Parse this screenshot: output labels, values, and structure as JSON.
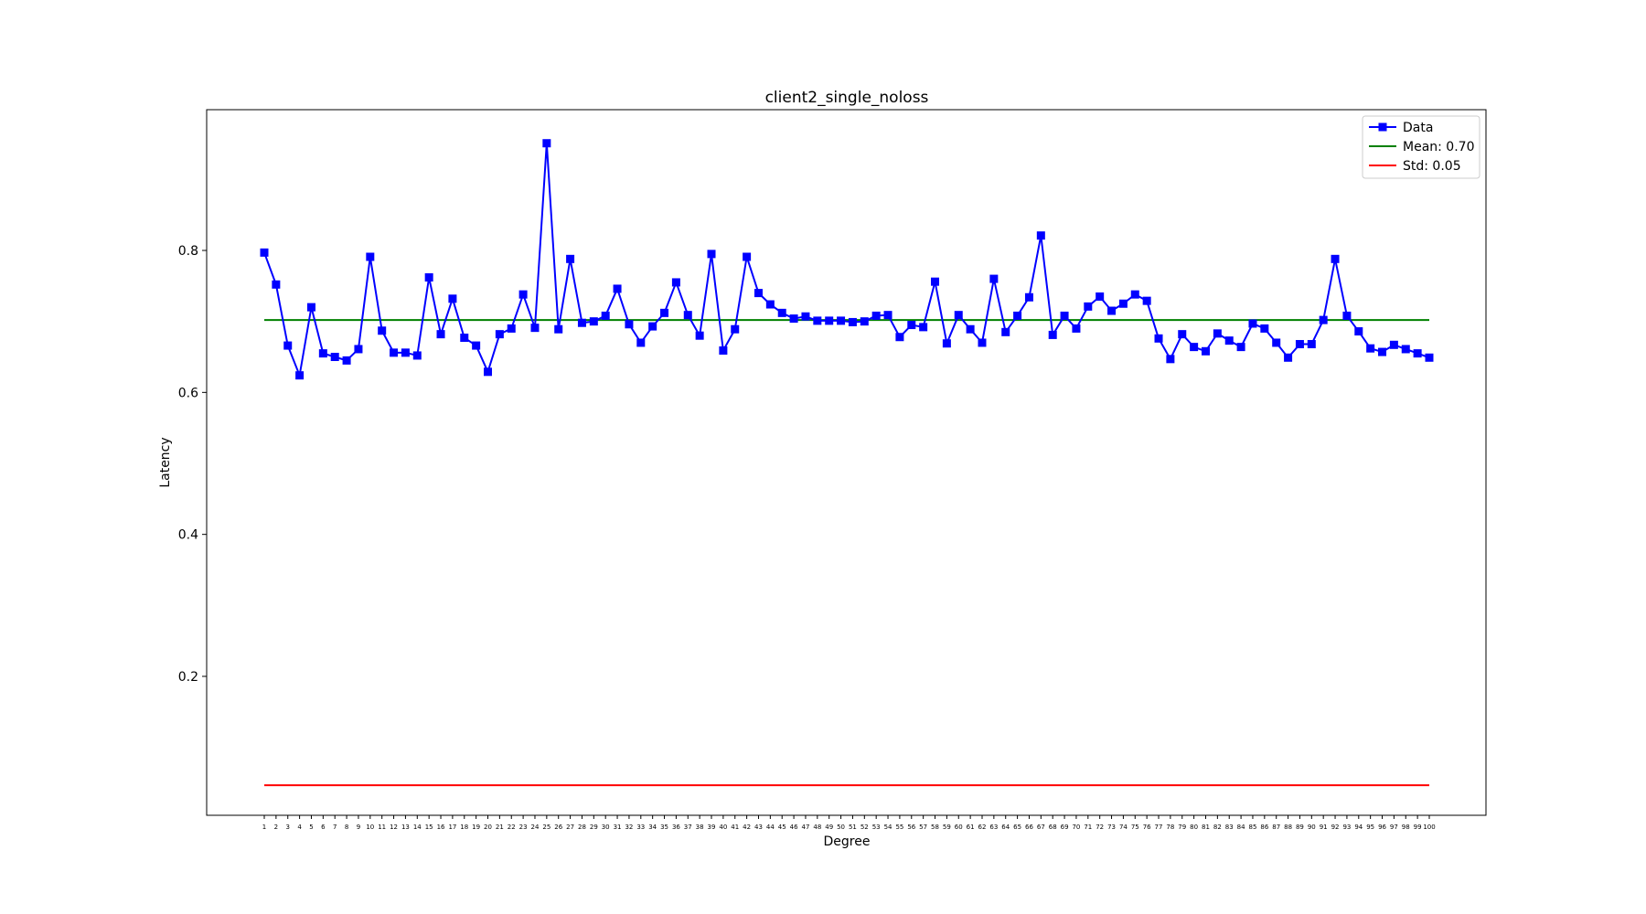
{
  "chart_data": {
    "type": "line",
    "title": "client2_single_noloss",
    "xlabel": "Degree",
    "ylabel": "Latency",
    "xlim": [
      1,
      100
    ],
    "ylim": [
      0,
      1
    ],
    "yticks": [
      0.2,
      0.4,
      0.6,
      0.8
    ],
    "ytick_labels": [
      "0.2",
      "0.4",
      "0.6",
      "0.8"
    ],
    "grid": false,
    "legend_position": "top-right",
    "x": [
      1,
      2,
      3,
      4,
      5,
      6,
      7,
      8,
      9,
      10,
      11,
      12,
      13,
      14,
      15,
      16,
      17,
      18,
      19,
      20,
      21,
      22,
      23,
      24,
      25,
      26,
      27,
      28,
      29,
      30,
      31,
      32,
      33,
      34,
      35,
      36,
      37,
      38,
      39,
      40,
      41,
      42,
      43,
      44,
      45,
      46,
      47,
      48,
      49,
      50,
      51,
      52,
      53,
      54,
      55,
      56,
      57,
      58,
      59,
      60,
      61,
      62,
      63,
      64,
      65,
      66,
      67,
      68,
      69,
      70,
      71,
      72,
      73,
      74,
      75,
      76,
      77,
      78,
      79,
      80,
      81,
      82,
      83,
      84,
      85,
      86,
      87,
      88,
      89,
      90,
      91,
      92,
      93,
      94,
      95,
      96,
      97,
      98,
      99,
      100
    ],
    "series": [
      {
        "name": "Data",
        "color": "#0000ff",
        "marker": "square",
        "values": [
          0.797,
          0.752,
          0.666,
          0.624,
          0.72,
          0.655,
          0.65,
          0.645,
          0.661,
          0.791,
          0.687,
          0.656,
          0.656,
          0.652,
          0.762,
          0.682,
          0.732,
          0.677,
          0.666,
          0.629,
          0.682,
          0.69,
          0.738,
          0.691,
          0.951,
          0.689,
          0.788,
          0.698,
          0.7,
          0.708,
          0.746,
          0.696,
          0.67,
          0.693,
          0.712,
          0.755,
          0.709,
          0.68,
          0.795,
          0.659,
          0.689,
          0.791,
          0.74,
          0.724,
          0.712,
          0.704,
          0.707,
          0.701,
          0.701,
          0.701,
          0.699,
          0.7,
          0.708,
          0.709,
          0.678,
          0.695,
          0.692,
          0.756,
          0.669,
          0.709,
          0.689,
          0.67,
          0.76,
          0.685,
          0.708,
          0.734,
          0.821,
          0.681,
          0.708,
          0.69,
          0.721,
          0.735,
          0.715,
          0.725,
          0.738,
          0.729,
          0.676,
          0.647,
          0.682,
          0.664,
          0.658,
          0.683,
          0.673,
          0.664,
          0.697,
          0.69,
          0.67,
          0.649,
          0.668,
          0.668,
          0.702,
          0.788,
          0.708,
          0.686,
          0.662,
          0.657,
          0.667,
          0.661,
          0.655,
          0.649
        ]
      },
      {
        "name": "Mean: 0.70",
        "color": "#008000",
        "value": 0.702
      },
      {
        "name": "Std: 0.05",
        "color": "#ff0000",
        "value": 0.0466
      }
    ]
  }
}
